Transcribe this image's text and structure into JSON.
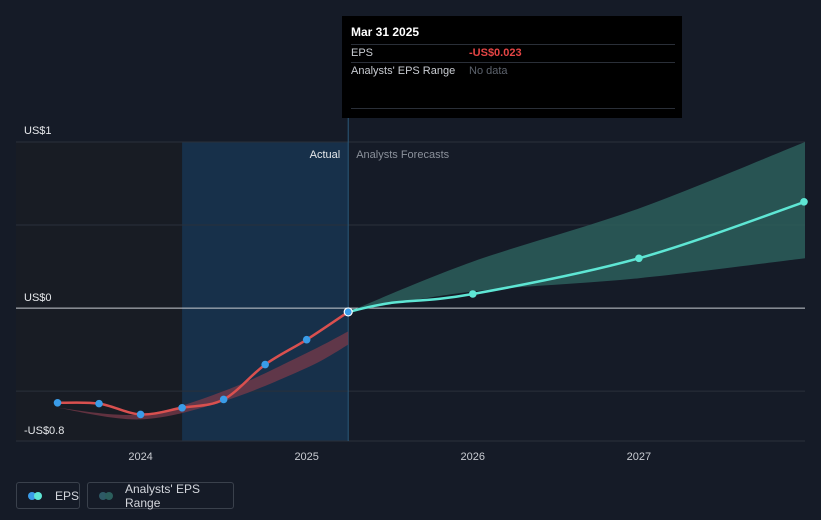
{
  "chart_data": {
    "type": "line",
    "y_labels": {
      "top": "US$1",
      "zero": "US$0",
      "bottom": "-US$0.8"
    },
    "x_ticks": [
      "2024",
      "2025",
      "2026",
      "2027"
    ],
    "region_labels": {
      "actual": "Actual",
      "forecast": "Analysts Forecasts"
    },
    "series": [
      {
        "name": "EPS",
        "points": [
          {
            "x": 2023.5,
            "y": -0.57
          },
          {
            "x": 2023.75,
            "y": -0.575
          },
          {
            "x": 2024.0,
            "y": -0.64
          },
          {
            "x": 2024.25,
            "y": -0.6
          },
          {
            "x": 2024.5,
            "y": -0.55
          },
          {
            "x": 2024.75,
            "y": -0.34
          },
          {
            "x": 2025.0,
            "y": -0.19
          },
          {
            "x": 2025.25,
            "y": -0.023
          }
        ]
      },
      {
        "name": "EPS forecast",
        "points": [
          {
            "x": 2025.25,
            "y": -0.023
          },
          {
            "x": 2025.5,
            "y": 0.03
          },
          {
            "x": 2026.0,
            "y": 0.085
          },
          {
            "x": 2027.0,
            "y": 0.3
          },
          {
            "x": 2028.0,
            "y": 0.64
          }
        ]
      }
    ],
    "forecast_range": {
      "upper": [
        {
          "x": 2025.25,
          "y": -0.023
        },
        {
          "x": 2026.0,
          "y": 0.28
        },
        {
          "x": 2027.0,
          "y": 0.6
        },
        {
          "x": 2028.0,
          "y": 1.0
        }
      ],
      "lower": [
        {
          "x": 2025.25,
          "y": -0.023
        },
        {
          "x": 2026.0,
          "y": 0.1
        },
        {
          "x": 2027.0,
          "y": 0.18
        },
        {
          "x": 2028.0,
          "y": 0.3
        }
      ]
    },
    "actual_range": {
      "upper": [
        {
          "x": 2023.5,
          "y": -0.6
        },
        {
          "x": 2024.0,
          "y": -0.64
        },
        {
          "x": 2024.5,
          "y": -0.5
        },
        {
          "x": 2025.0,
          "y": -0.27
        },
        {
          "x": 2025.25,
          "y": -0.14
        }
      ],
      "lower": [
        {
          "x": 2023.5,
          "y": -0.6
        },
        {
          "x": 2024.0,
          "y": -0.67
        },
        {
          "x": 2024.5,
          "y": -0.56
        },
        {
          "x": 2025.0,
          "y": -0.36
        },
        {
          "x": 2025.25,
          "y": -0.22
        }
      ]
    },
    "highlight_start": 2024.25,
    "forecast_start": 2025.25,
    "xlim": [
      2023.25,
      2028.0
    ],
    "ylim": [
      -0.8,
      1.0
    ],
    "colors": {
      "eps_actual": "#d9504f",
      "eps_forecast": "#5ee6d4",
      "point_actual": "#3a9ce8",
      "range_actual": "#7a3a4a",
      "range_forecast": "#2b5e5c",
      "highlight": "#17304a"
    }
  },
  "tooltip": {
    "date": "Mar 31 2025",
    "rows": [
      {
        "label": "EPS",
        "value": "-US$0.023"
      },
      {
        "label": "Analysts' EPS Range",
        "value": "No data"
      }
    ]
  },
  "legend": {
    "eps_label": "EPS",
    "range_label": "Analysts' EPS Range"
  }
}
